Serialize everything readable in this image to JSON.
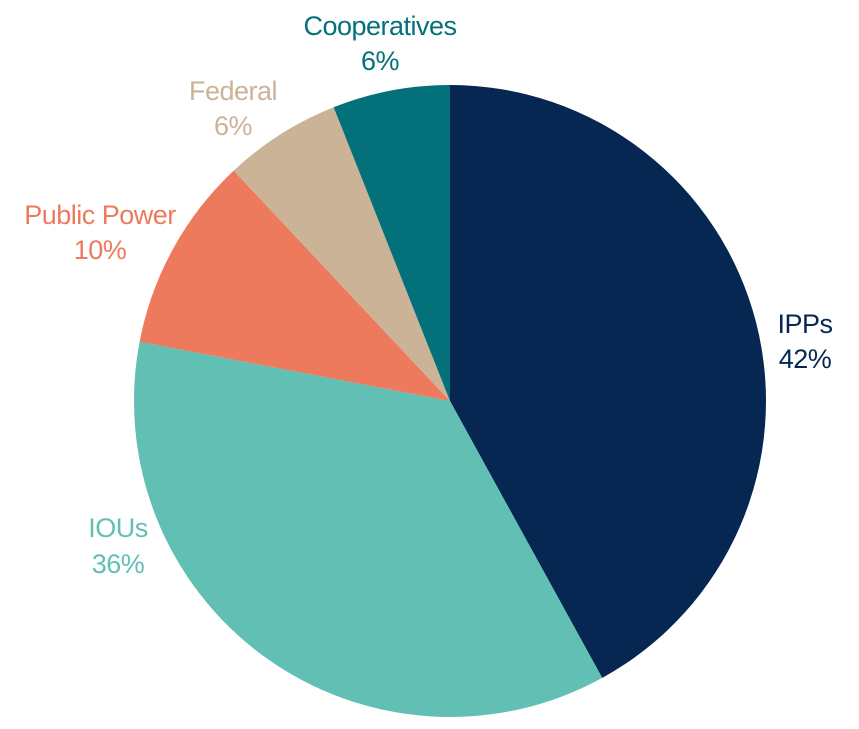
{
  "chart_data": {
    "type": "pie",
    "start_angle_deg": 0,
    "direction": "clockwise",
    "slices": [
      {
        "label": "IPPs",
        "value": 42,
        "value_label": "42%",
        "color": "#052751",
        "label_color": "#052751"
      },
      {
        "label": "IOUs",
        "value": 36,
        "value_label": "36%",
        "color": "#62bfb4",
        "label_color": "#62bfb4"
      },
      {
        "label": "Public Power",
        "value": 10,
        "value_label": "10%",
        "color": "#ee7a5d",
        "label_color": "#ee7a5d"
      },
      {
        "label": "Federal",
        "value": 6,
        "value_label": "6%",
        "color": "#cbb398",
        "label_color": "#cbb398"
      },
      {
        "label": "Cooperatives",
        "value": 6,
        "value_label": "6%",
        "color": "#04707a",
        "label_color": "#04707a"
      }
    ]
  }
}
